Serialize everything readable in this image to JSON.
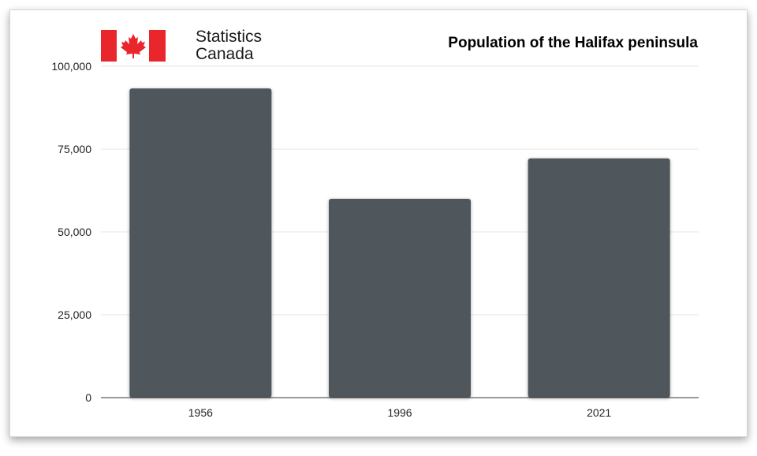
{
  "header": {
    "brand_line1": "Statistics",
    "brand_line2": "Canada"
  },
  "colors": {
    "bar": "#50565c",
    "flag_red": "#e8262b",
    "grid": "#e6e6e6",
    "axis": "#333333"
  },
  "icons": {
    "logo": "canada-flag-icon"
  },
  "chart_data": {
    "type": "bar",
    "title": "Population of the Halifax peninsula",
    "xlabel": "",
    "ylabel": "",
    "categories": [
      "1956",
      "1996",
      "2021"
    ],
    "values": [
      93300,
      60000,
      72200
    ],
    "ylim": [
      0,
      100000
    ],
    "yticks": [
      0,
      25000,
      50000,
      75000,
      100000
    ],
    "ytick_labels": [
      "0",
      "25,000",
      "50,000",
      "75,000",
      "100,000"
    ],
    "grid": true,
    "legend": "none"
  }
}
